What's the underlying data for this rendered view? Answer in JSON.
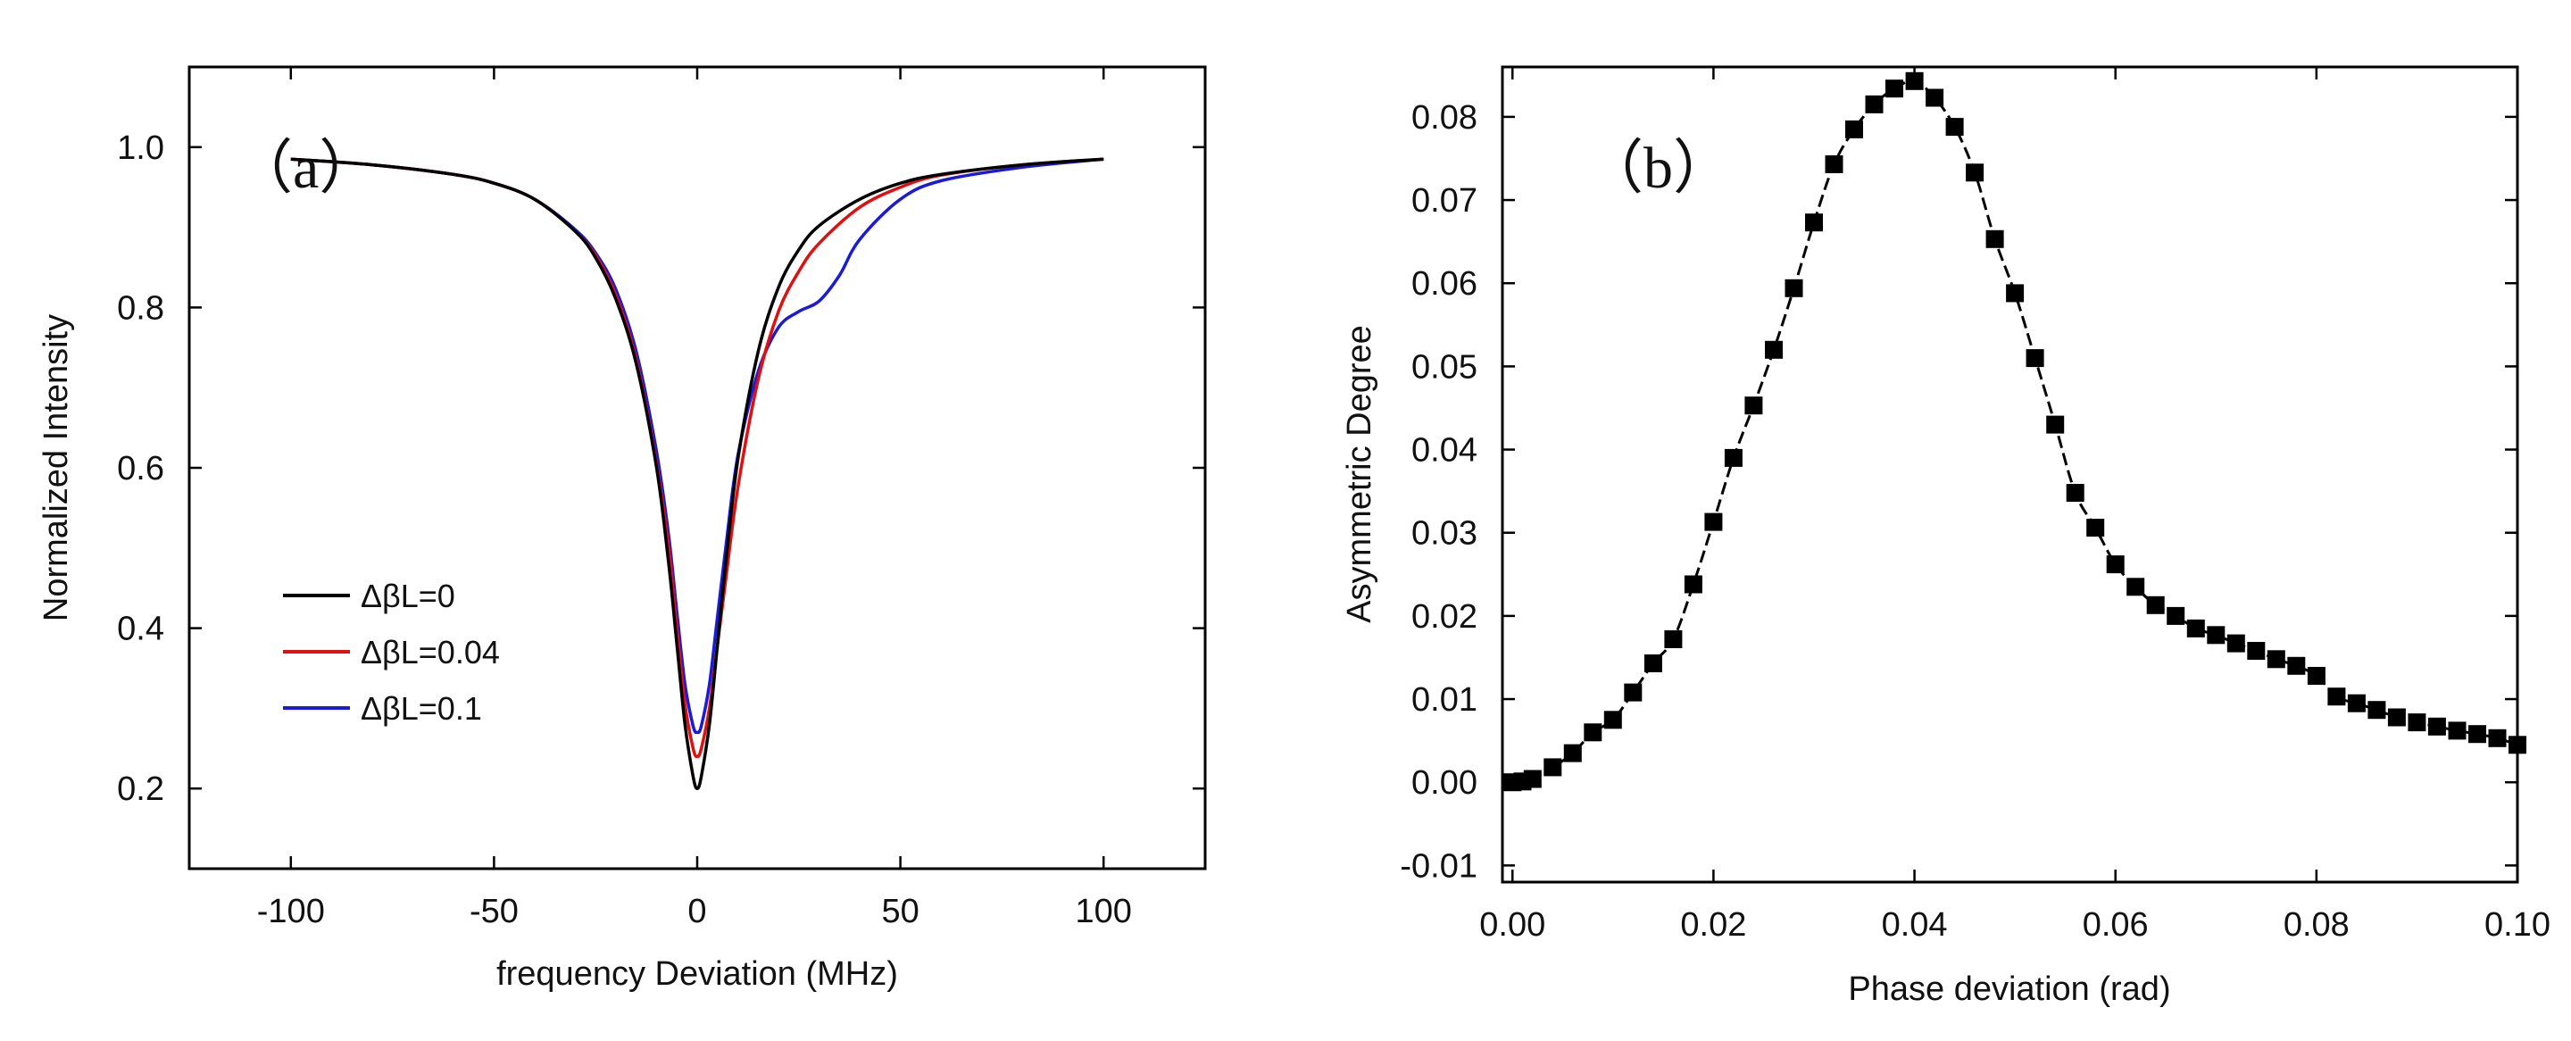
{
  "chart_data": [
    {
      "type": "line",
      "panel_label": "（a）",
      "xlabel": "frequency Deviation (MHz)",
      "ylabel": "Normalized Intensity",
      "xlim": [
        -125,
        125
      ],
      "ylim": [
        0.1,
        1.1
      ],
      "xticks": [
        -100,
        -50,
        0,
        50,
        100
      ],
      "xtick_labels": [
        "-100",
        "-50",
        "0",
        "50",
        "100"
      ],
      "yticks": [
        0.2,
        0.4,
        0.6,
        0.8,
        1.0
      ],
      "ytick_labels": [
        "0.2",
        "0.4",
        "0.6",
        "0.8",
        "1.0"
      ],
      "legend_position": "lower-left",
      "series": [
        {
          "name": "ΔβL=0",
          "color": "#000000",
          "x": [
            -100,
            -80,
            -60,
            -50,
            -40,
            -30,
            -25,
            -20,
            -15,
            -10,
            -7,
            -5,
            -3,
            -1,
            0,
            1,
            3,
            5,
            7,
            10,
            15,
            20,
            25,
            30,
            40,
            50,
            60,
            80,
            100
          ],
          "y": [
            0.985,
            0.978,
            0.966,
            0.955,
            0.935,
            0.895,
            0.862,
            0.81,
            0.73,
            0.6,
            0.48,
            0.38,
            0.28,
            0.215,
            0.2,
            0.215,
            0.28,
            0.38,
            0.48,
            0.61,
            0.745,
            0.825,
            0.872,
            0.902,
            0.935,
            0.955,
            0.966,
            0.978,
            0.985
          ]
        },
        {
          "name": "ΔβL=0.04",
          "color": "#e01010",
          "x": [
            -100,
            -80,
            -60,
            -50,
            -40,
            -30,
            -25,
            -20,
            -15,
            -10,
            -7,
            -5,
            -3,
            -1,
            0,
            1,
            3,
            5,
            7,
            10,
            15,
            20,
            25,
            30,
            40,
            50,
            60,
            80,
            100
          ],
          "y": [
            0.985,
            0.978,
            0.966,
            0.955,
            0.935,
            0.895,
            0.865,
            0.815,
            0.735,
            0.605,
            0.5,
            0.4,
            0.305,
            0.25,
            0.24,
            0.25,
            0.3,
            0.38,
            0.46,
            0.575,
            0.71,
            0.795,
            0.845,
            0.88,
            0.925,
            0.95,
            0.965,
            0.978,
            0.985
          ]
        },
        {
          "name": "ΔβL=0.1",
          "color": "#1a1ad8",
          "x": [
            -100,
            -80,
            -60,
            -50,
            -40,
            -30,
            -25,
            -20,
            -15,
            -10,
            -7,
            -5,
            -3,
            -1,
            0,
            1,
            3,
            5,
            7,
            10,
            15,
            20,
            25,
            30,
            35,
            40,
            50,
            60,
            80,
            100
          ],
          "y": [
            0.985,
            0.978,
            0.966,
            0.955,
            0.935,
            0.897,
            0.868,
            0.822,
            0.745,
            0.62,
            0.515,
            0.42,
            0.33,
            0.278,
            0.27,
            0.278,
            0.33,
            0.415,
            0.5,
            0.615,
            0.72,
            0.775,
            0.795,
            0.808,
            0.84,
            0.885,
            0.935,
            0.958,
            0.975,
            0.985
          ]
        }
      ]
    },
    {
      "type": "scatter",
      "panel_label": "（b）",
      "xlabel": "Phase deviation (rad)",
      "ylabel": "Asymmetric Degree",
      "xlim": [
        -0.001,
        0.1
      ],
      "ylim": [
        -0.012,
        0.086
      ],
      "xticks": [
        0.0,
        0.02,
        0.04,
        0.06,
        0.08,
        0.1
      ],
      "xtick_labels": [
        "0.00",
        "0.02",
        "0.04",
        "0.06",
        "0.08",
        "0.10"
      ],
      "yticks": [
        -0.01,
        0.0,
        0.01,
        0.02,
        0.03,
        0.04,
        0.05,
        0.06,
        0.07,
        0.08
      ],
      "ytick_labels": [
        "-0.01",
        "0.00",
        "0.01",
        "0.02",
        "0.03",
        "0.04",
        "0.05",
        "0.06",
        "0.07",
        "0.08"
      ],
      "marker": "square",
      "connect_line": true,
      "color": "#000000",
      "x": [
        0.0,
        0.001,
        0.002,
        0.004,
        0.006,
        0.008,
        0.01,
        0.012,
        0.014,
        0.016,
        0.018,
        0.02,
        0.022,
        0.024,
        0.026,
        0.028,
        0.03,
        0.032,
        0.034,
        0.036,
        0.038,
        0.04,
        0.042,
        0.044,
        0.046,
        0.048,
        0.05,
        0.052,
        0.054,
        0.056,
        0.058,
        0.06,
        0.062,
        0.064,
        0.066,
        0.068,
        0.07,
        0.072,
        0.074,
        0.076,
        0.078,
        0.08,
        0.082,
        0.084,
        0.086,
        0.088,
        0.09,
        0.092,
        0.094,
        0.096,
        0.098,
        0.1
      ],
      "y": [
        0.0,
        0.0001,
        0.0004,
        0.0018,
        0.0035,
        0.006,
        0.0075,
        0.0108,
        0.0143,
        0.0172,
        0.0238,
        0.0313,
        0.039,
        0.0453,
        0.052,
        0.0594,
        0.0673,
        0.0743,
        0.0785,
        0.0815,
        0.0834,
        0.0843,
        0.0823,
        0.0788,
        0.0733,
        0.0653,
        0.0588,
        0.051,
        0.043,
        0.0348,
        0.0306,
        0.0262,
        0.0235,
        0.0213,
        0.02,
        0.0185,
        0.0177,
        0.0167,
        0.0158,
        0.0148,
        0.014,
        0.0128,
        0.0103,
        0.0095,
        0.0087,
        0.0078,
        0.0072,
        0.0067,
        0.0062,
        0.0058,
        0.0053,
        0.0045
      ]
    }
  ]
}
